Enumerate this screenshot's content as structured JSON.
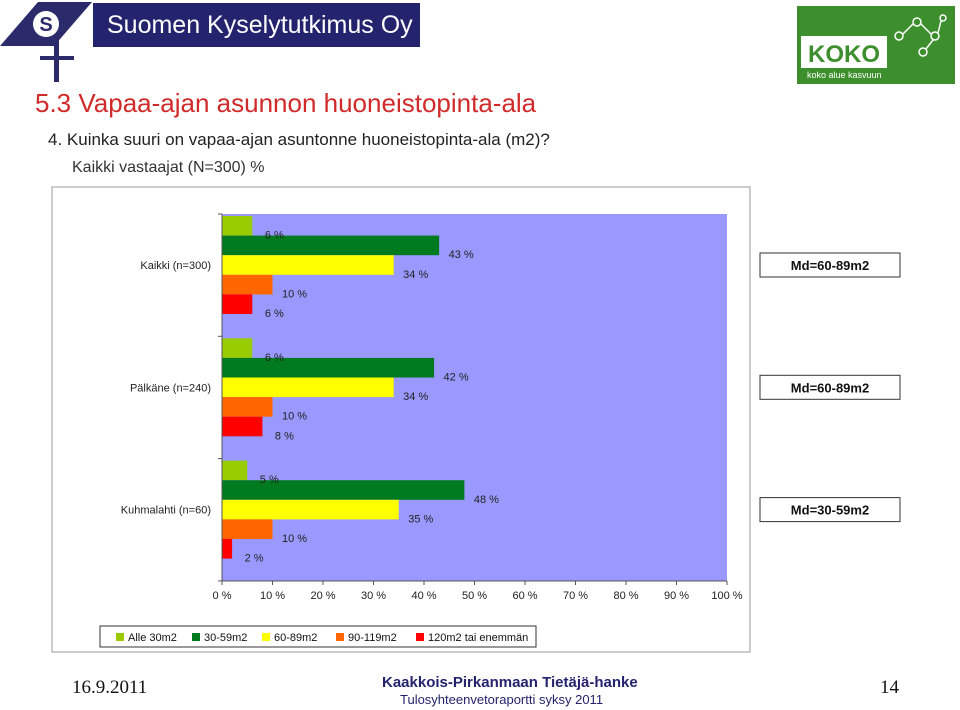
{
  "header": {
    "company": "Suomen Kyselytutkimus Oy",
    "logo_letters": "S",
    "partner_logo_text": "KOKO",
    "partner_logo_tagline": "koko alue kasvuun"
  },
  "slide": {
    "title": "5.3 Vapaa-ajan asunnon huoneistopinta-ala",
    "question": "4. Kuinka suuri on vapaa-ajan asuntonne huoneistopinta-ala (m2)?",
    "base": "Kaikki vastaajat (N=300) %"
  },
  "chart_data": {
    "type": "bar",
    "orientation": "horizontal",
    "categories": [
      "Kaikki (n=300)",
      "Pälkäne (n=240)",
      "Kuhmalahti (n=60)"
    ],
    "series": [
      {
        "name": "Alle 30m2",
        "color": "#99cc00",
        "values": [
          6,
          6,
          5
        ]
      },
      {
        "name": "30-59m2",
        "color": "#007a1f",
        "values": [
          43,
          42,
          48
        ]
      },
      {
        "name": "60-89m2",
        "color": "#ffff00",
        "values": [
          34,
          34,
          35
        ]
      },
      {
        "name": "90-119m2",
        "color": "#ff6600",
        "values": [
          10,
          10,
          10
        ]
      },
      {
        "name": "120m2 tai enemmän",
        "color": "#ff0000",
        "values": [
          6,
          8,
          2
        ]
      }
    ],
    "value_suffix": " %",
    "xlim": [
      0,
      100
    ],
    "xticks": [
      "0 %",
      "10 %",
      "20 %",
      "30 %",
      "40 %",
      "50 %",
      "60 %",
      "70 %",
      "80 %",
      "90 %",
      "100 %"
    ],
    "plot_background": "#9999ff",
    "legend_position": "bottom",
    "annotations": [
      "Md=60-89m2",
      "Md=60-89m2",
      "Md=30-59m2"
    ]
  },
  "footer": {
    "date": "16.9.2011",
    "project": "Kaakkois-Pirkanmaan Tietäjä-hanke",
    "report": "Tulosyhteenvetoraportti syksy 2011",
    "page": "14"
  }
}
